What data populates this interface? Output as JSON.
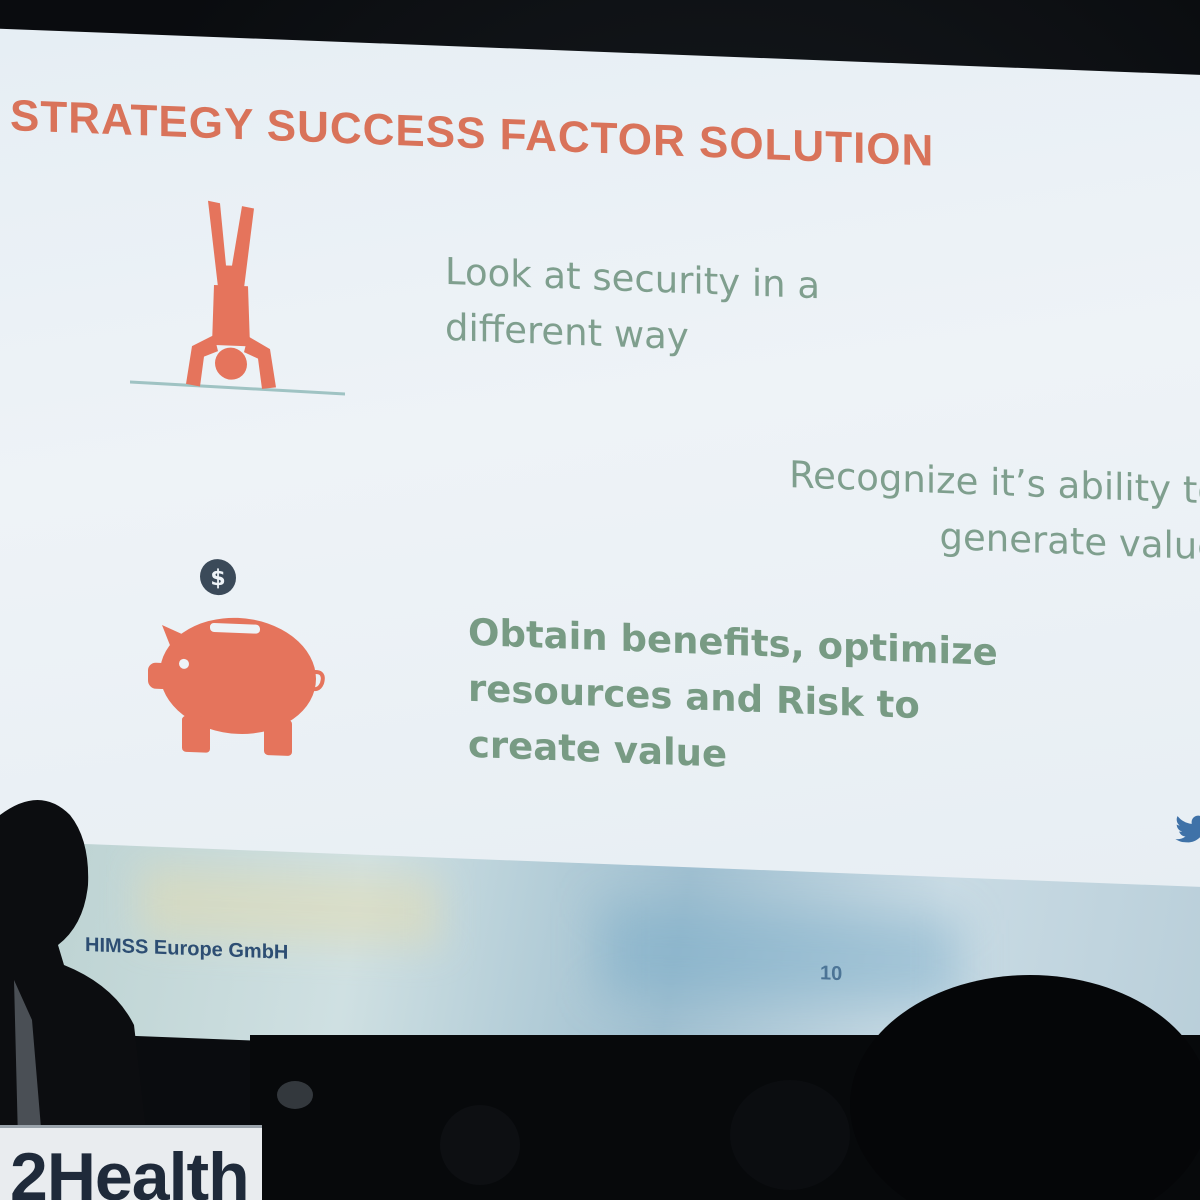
{
  "slide": {
    "title": "STRATEGY SUCCESS FACTOR SOLUTION",
    "points": [
      {
        "lines": [
          "Look at security in a",
          "different way"
        ]
      },
      {
        "lines": [
          "Recognize it’s ability to",
          "generate value"
        ]
      },
      {
        "lines": [
          "Obtain benefits, optimize",
          "resources and Risk to",
          "create value"
        ]
      }
    ],
    "icons": [
      "handstand-person-icon",
      "piggy-bank-icon",
      "dollar-coin-icon",
      "twitter-icon"
    ],
    "footer": {
      "copyright": "HIMSS Europe GmbH",
      "page_number": "10"
    }
  },
  "banner": {
    "text": "2Health"
  },
  "colors": {
    "title": "#d9735a",
    "body_text": "#7f9f8e",
    "icon": "#e5745c",
    "footer_text": "#2d4e73"
  }
}
